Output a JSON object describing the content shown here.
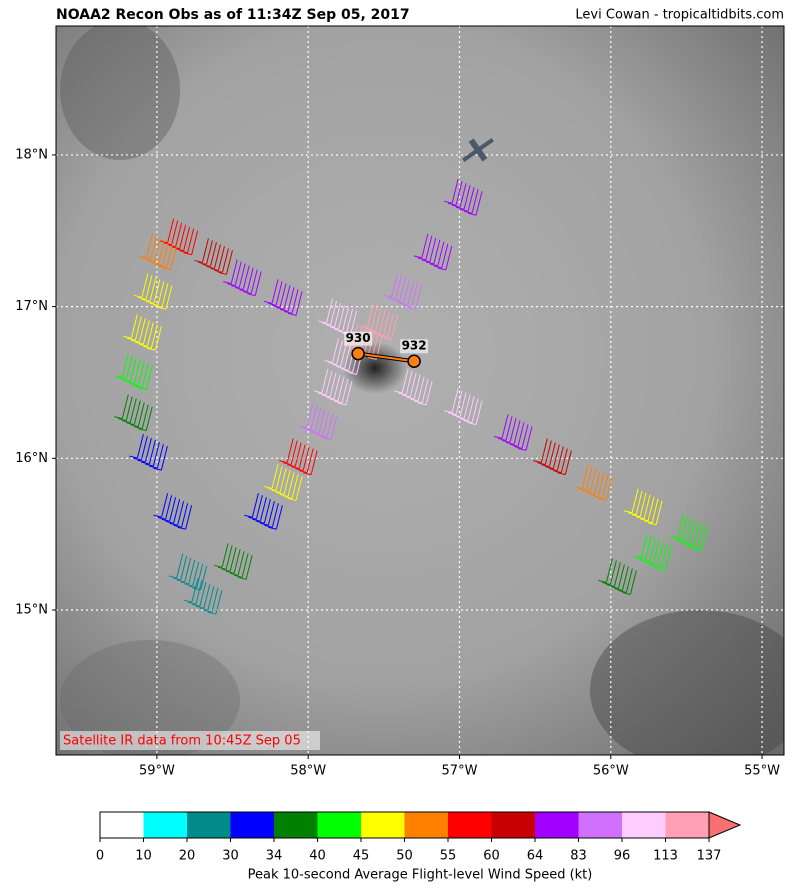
{
  "chart_data": {
    "type": "map",
    "title": "NOAA2 Recon Obs as of 11:34Z Sep 05, 2017",
    "credit": "Levi Cowan - tropicaltidbits.com",
    "note": "Satellite IR data from 10:45Z Sep 05",
    "xlim": [
      -59.667,
      -54.855
    ],
    "ylim": [
      14.044,
      18.85
    ],
    "xticks": [
      {
        "value": -59,
        "label": "59°W"
      },
      {
        "value": -58,
        "label": "58°W"
      },
      {
        "value": -57,
        "label": "57°W"
      },
      {
        "value": -56,
        "label": "56°W"
      },
      {
        "value": -55,
        "label": "55°W"
      }
    ],
    "yticks": [
      {
        "value": 15,
        "label": "15°N"
      },
      {
        "value": 16,
        "label": "16°N"
      },
      {
        "value": 17,
        "label": "17°N"
      },
      {
        "value": 18,
        "label": "18°N"
      }
    ],
    "grid": true,
    "legs": [
      [
        {
          "lon": -56.93,
          "lat": 17.8,
          "wind": 70
        },
        {
          "lon": -57.13,
          "lat": 17.44,
          "wind": 75
        },
        {
          "lon": -57.33,
          "lat": 17.18,
          "wind": 90
        },
        {
          "lon": -57.49,
          "lat": 16.98,
          "wind": 120
        },
        {
          "lon": -57.59,
          "lat": 16.85,
          "wind": 120
        }
      ],
      [
        {
          "lon": -57.26,
          "lat": 16.55,
          "wind": 100
        },
        {
          "lon": -56.93,
          "lat": 16.42,
          "wind": 110
        },
        {
          "lon": -56.6,
          "lat": 16.25,
          "wind": 80
        },
        {
          "lon": -56.34,
          "lat": 16.09,
          "wind": 62
        },
        {
          "lon": -56.07,
          "lat": 15.92,
          "wind": 52
        },
        {
          "lon": -55.74,
          "lat": 15.76,
          "wind": 47
        },
        {
          "lon": -55.44,
          "lat": 15.59,
          "wind": 42
        },
        {
          "lon": -55.68,
          "lat": 15.46,
          "wind": 42
        },
        {
          "lon": -55.91,
          "lat": 15.3,
          "wind": 38
        }
      ],
      [
        {
          "lon": -57.76,
          "lat": 17.01,
          "wind": 100
        },
        {
          "lon": -58.12,
          "lat": 17.14,
          "wind": 75
        },
        {
          "lon": -58.39,
          "lat": 17.27,
          "wind": 70
        },
        {
          "lon": -58.58,
          "lat": 17.41,
          "wind": 60
        },
        {
          "lon": -58.81,
          "lat": 17.54,
          "wind": 56
        },
        {
          "lon": -58.95,
          "lat": 17.44,
          "wind": 52
        },
        {
          "lon": -58.98,
          "lat": 17.18,
          "wind": 48
        },
        {
          "lon": -59.05,
          "lat": 16.91,
          "wind": 46
        },
        {
          "lon": -59.11,
          "lat": 16.65,
          "wind": 42
        },
        {
          "lon": -59.11,
          "lat": 16.38,
          "wind": 36
        },
        {
          "lon": -59.01,
          "lat": 16.12,
          "wind": 32
        },
        {
          "lon": -58.85,
          "lat": 15.73,
          "wind": 30
        },
        {
          "lon": -58.75,
          "lat": 15.33,
          "wind": 25
        },
        {
          "lon": -58.65,
          "lat": 15.17,
          "wind": 22
        },
        {
          "lon": -58.45,
          "lat": 15.4,
          "wind": 36
        },
        {
          "lon": -58.25,
          "lat": 15.73,
          "wind": 31
        },
        {
          "lon": -58.12,
          "lat": 15.92,
          "wind": 47
        },
        {
          "lon": -58.02,
          "lat": 16.09,
          "wind": 57
        },
        {
          "lon": -57.89,
          "lat": 16.32,
          "wind": 85
        },
        {
          "lon": -57.79,
          "lat": 16.55,
          "wind": 100
        },
        {
          "lon": -57.72,
          "lat": 16.75,
          "wind": 110
        }
      ]
    ],
    "dropsondes": [
      {
        "lon": -57.67,
        "lat": 16.69,
        "pressure": 930
      },
      {
        "lon": -57.3,
        "lat": 16.64,
        "pressure": 932
      }
    ],
    "colorbar": {
      "label": "Peak 10-second Average Flight-level Wind Speed (kt)",
      "boundaries": [
        0,
        10,
        20,
        30,
        34,
        40,
        45,
        50,
        55,
        60,
        64,
        83,
        96,
        113,
        137
      ],
      "colors": [
        "#ffffff",
        "#00ffff",
        "#008b8b",
        "#0000ff",
        "#008000",
        "#00ff00",
        "#ffff00",
        "#ff7f00",
        "#ff0000",
        "#c80000",
        "#a000ff",
        "#d070ff",
        "#ffccff",
        "#ffa0b4",
        "#f87070"
      ]
    }
  }
}
